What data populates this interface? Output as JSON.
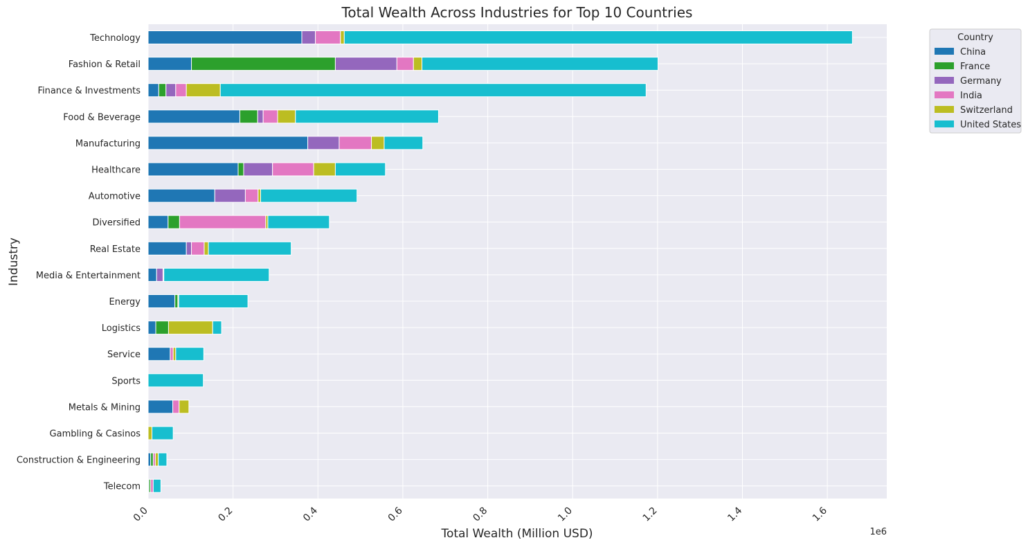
{
  "chart_data": {
    "type": "bar",
    "orientation": "horizontal",
    "stacked": true,
    "title": "Total Wealth Across Industries for Top 10 Countries",
    "xlabel": "Total Wealth (Million USD)",
    "ylabel": "Industry",
    "x_offset_label": "1e6",
    "xlim": [
      0,
      1.74
    ],
    "x_ticks": [
      0.0,
      0.2,
      0.4,
      0.6,
      0.8,
      1.0,
      1.2,
      1.4,
      1.6
    ],
    "x_tick_labels": [
      "0.0",
      "0.2",
      "0.4",
      "0.6",
      "0.8",
      "1.0",
      "1.2",
      "1.4",
      "1.6"
    ],
    "grid": true,
    "legend_title": "Country",
    "legend_position": "outside top-right",
    "categories": [
      "Technology",
      "Fashion & Retail",
      "Finance & Investments",
      "Food & Beverage",
      "Manufacturing",
      "Healthcare",
      "Automotive",
      "Diversified",
      "Real Estate",
      "Media & Entertainment",
      "Energy",
      "Logistics",
      "Service",
      "Sports",
      "Metals & Mining",
      "Gambling & Casinos",
      "Construction & Engineering",
      "Telecom"
    ],
    "series": [
      {
        "name": "China",
        "color": "#1f77b4",
        "values": [
          0.362,
          0.102,
          0.025,
          0.216,
          0.376,
          0.212,
          0.157,
          0.047,
          0.09,
          0.02,
          0.063,
          0.018,
          0.052,
          0.0,
          0.058,
          0.0,
          0.006,
          0.002
        ]
      },
      {
        "name": "France",
        "color": "#2ca02c",
        "values": [
          0.0,
          0.339,
          0.017,
          0.042,
          0.0,
          0.013,
          0.0,
          0.027,
          0.0,
          0.0,
          0.007,
          0.03,
          0.0,
          0.0,
          0.0,
          0.0,
          0.006,
          0.004
        ]
      },
      {
        "name": "Germany",
        "color": "#9467bd",
        "values": [
          0.032,
          0.145,
          0.023,
          0.013,
          0.074,
          0.068,
          0.072,
          0.0,
          0.012,
          0.015,
          0.0,
          0.0,
          0.0,
          0.0,
          0.0,
          0.0,
          0.0,
          0.0
        ]
      },
      {
        "name": "India",
        "color": "#e377c2",
        "values": [
          0.059,
          0.039,
          0.025,
          0.034,
          0.076,
          0.097,
          0.03,
          0.203,
          0.03,
          0.002,
          0.0,
          0.0,
          0.007,
          0.0,
          0.015,
          0.0,
          0.005,
          0.006
        ]
      },
      {
        "name": "Switzerland",
        "color": "#bcbd22",
        "values": [
          0.009,
          0.02,
          0.08,
          0.042,
          0.03,
          0.051,
          0.006,
          0.005,
          0.01,
          0.0,
          0.002,
          0.104,
          0.006,
          0.0,
          0.023,
          0.009,
          0.007,
          0.0
        ]
      },
      {
        "name": "United States",
        "color": "#17becf",
        "values": [
          1.197,
          0.556,
          1.003,
          0.337,
          0.091,
          0.118,
          0.227,
          0.145,
          0.195,
          0.248,
          0.163,
          0.021,
          0.066,
          0.13,
          0.0,
          0.05,
          0.02,
          0.018
        ]
      }
    ]
  }
}
